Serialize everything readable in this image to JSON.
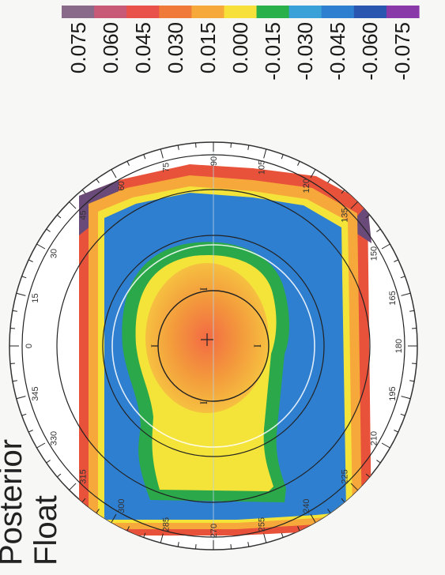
{
  "map": {
    "title_line1": "Posterior",
    "title_line2": "Float"
  },
  "scale": {
    "labels": [
      "0.075",
      "0.060",
      "0.045",
      "0.030",
      "0.015",
      "0.000",
      "-0.015",
      "-0.030",
      "-0.045",
      "-0.060",
      "-0.075"
    ],
    "colors": [
      "#8a6a8a",
      "#c85a78",
      "#e8524a",
      "#f07a3a",
      "#f6a83a",
      "#f7e03a",
      "#2ab04a",
      "#3aa0d8",
      "#2e7fd0",
      "#2a56b0",
      "#8a3aa8"
    ]
  },
  "dial": {
    "angle_labels": [
      "0",
      "15",
      "30",
      "45",
      "60",
      "75",
      "90",
      "105",
      "120",
      "135",
      "150",
      "165",
      "180",
      "195",
      "210",
      "225",
      "240",
      "255",
      "270",
      "285",
      "300",
      "315",
      "330",
      "345"
    ]
  },
  "markers": {
    "ring_marks": [
      "I",
      "I",
      "I",
      "I"
    ]
  },
  "colors": {
    "blue": "#2e7fd0",
    "green": "#2aa84a",
    "yellow": "#f4e43a",
    "orange": "#f39a3c",
    "red": "#e8523a",
    "purple": "#6a4a78"
  }
}
